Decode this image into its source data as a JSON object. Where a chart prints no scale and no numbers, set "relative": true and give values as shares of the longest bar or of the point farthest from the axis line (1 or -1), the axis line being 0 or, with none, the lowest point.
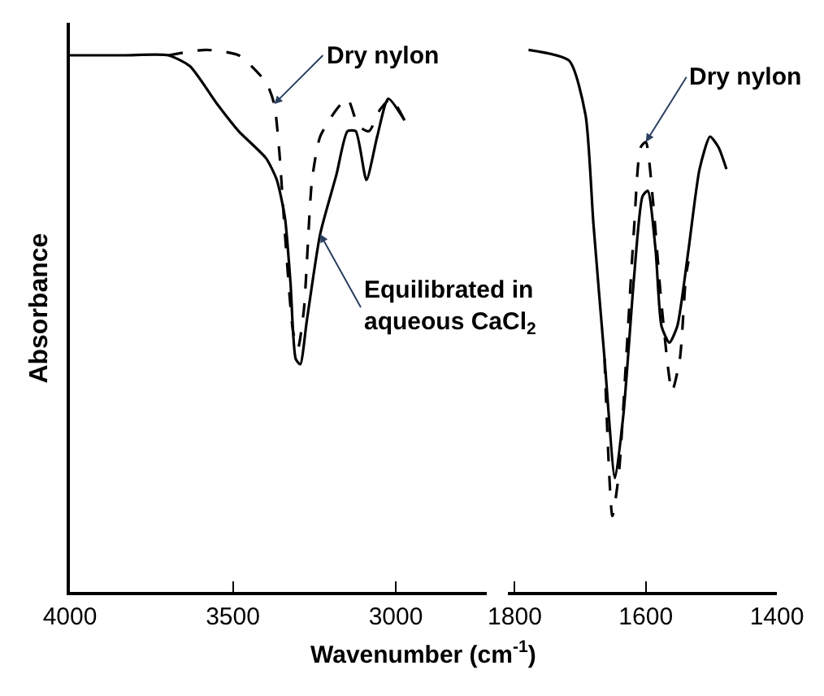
{
  "chart_data": [
    {
      "type": "line",
      "relative": true,
      "xlabel": "Wavenumber (cm$^{-1}$)",
      "ylabel": "Absorbance",
      "xlim": [
        4000,
        2720
      ],
      "xticks": [
        4000,
        3500,
        3000
      ],
      "tick_labels": "x",
      "series": [
        {
          "color": "#000000",
          "line_style": "solid",
          "x": [
            4000,
            3832,
            3698,
            3632,
            3548,
            3482,
            3398,
            3365,
            3340,
            3323,
            3307,
            3293,
            3273,
            3232,
            3182,
            3148,
            3123,
            3090,
            3057,
            3023,
            2973
          ],
          "values": [
            0.99,
            0.99,
            0.99,
            0.97,
            0.9,
            0.85,
            0.8,
            0.76,
            0.69,
            0.57,
            0.43,
            0.42,
            0.5,
            0.66,
            0.77,
            0.85,
            0.85,
            0.76,
            0.84,
            0.91,
            0.87
          ]
        },
        {
          "color": "#000000",
          "line_style": "dashed",
          "x": [
            3698,
            3582,
            3482,
            3398,
            3373,
            3357,
            3340,
            3315,
            3300,
            3282,
            3257,
            3232,
            3182,
            3148,
            3115,
            3082,
            3048,
            3015,
            2973
          ],
          "values": [
            0.99,
            1.0,
            0.99,
            0.94,
            0.9,
            0.81,
            0.66,
            0.48,
            0.45,
            0.52,
            0.76,
            0.84,
            0.89,
            0.91,
            0.86,
            0.85,
            0.89,
            0.91,
            0.87
          ]
        }
      ],
      "annotations": [
        {
          "text": "Dry nylon",
          "x": 3373,
          "y": 0.9
        },
        {
          "text": "Equilibrated in\naqueous CaCl$_{2}$",
          "x": 3232,
          "y": 0.66
        }
      ]
    },
    {
      "type": "line",
      "relative": true,
      "xlim": [
        1810,
        1400
      ],
      "xticks": [
        1800,
        1600,
        1400
      ],
      "tick_labels": "x",
      "series": [
        {
          "color": "#000000",
          "line_style": "solid",
          "x": [
            1779,
            1717,
            1692,
            1680,
            1663,
            1647,
            1634,
            1618,
            1605,
            1597,
            1585,
            1576,
            1564,
            1552,
            1535,
            1518,
            1502,
            1489,
            1477
          ],
          "values": [
            1.0,
            0.98,
            0.88,
            0.68,
            0.43,
            0.21,
            0.33,
            0.58,
            0.73,
            0.74,
            0.63,
            0.49,
            0.46,
            0.49,
            0.63,
            0.78,
            0.84,
            0.82,
            0.78
          ]
        },
        {
          "color": "#000000",
          "line_style": "dashed",
          "x": [
            1663,
            1651,
            1641,
            1630,
            1618,
            1608,
            1600,
            1589,
            1576,
            1560,
            1548,
            1539,
            1535
          ],
          "values": [
            0.43,
            0.14,
            0.22,
            0.43,
            0.67,
            0.82,
            0.83,
            0.72,
            0.53,
            0.37,
            0.43,
            0.58,
            0.61
          ]
        }
      ],
      "annotations": [
        {
          "text": "Dry nylon",
          "x": 1600,
          "y": 0.83
        }
      ]
    }
  ]
}
